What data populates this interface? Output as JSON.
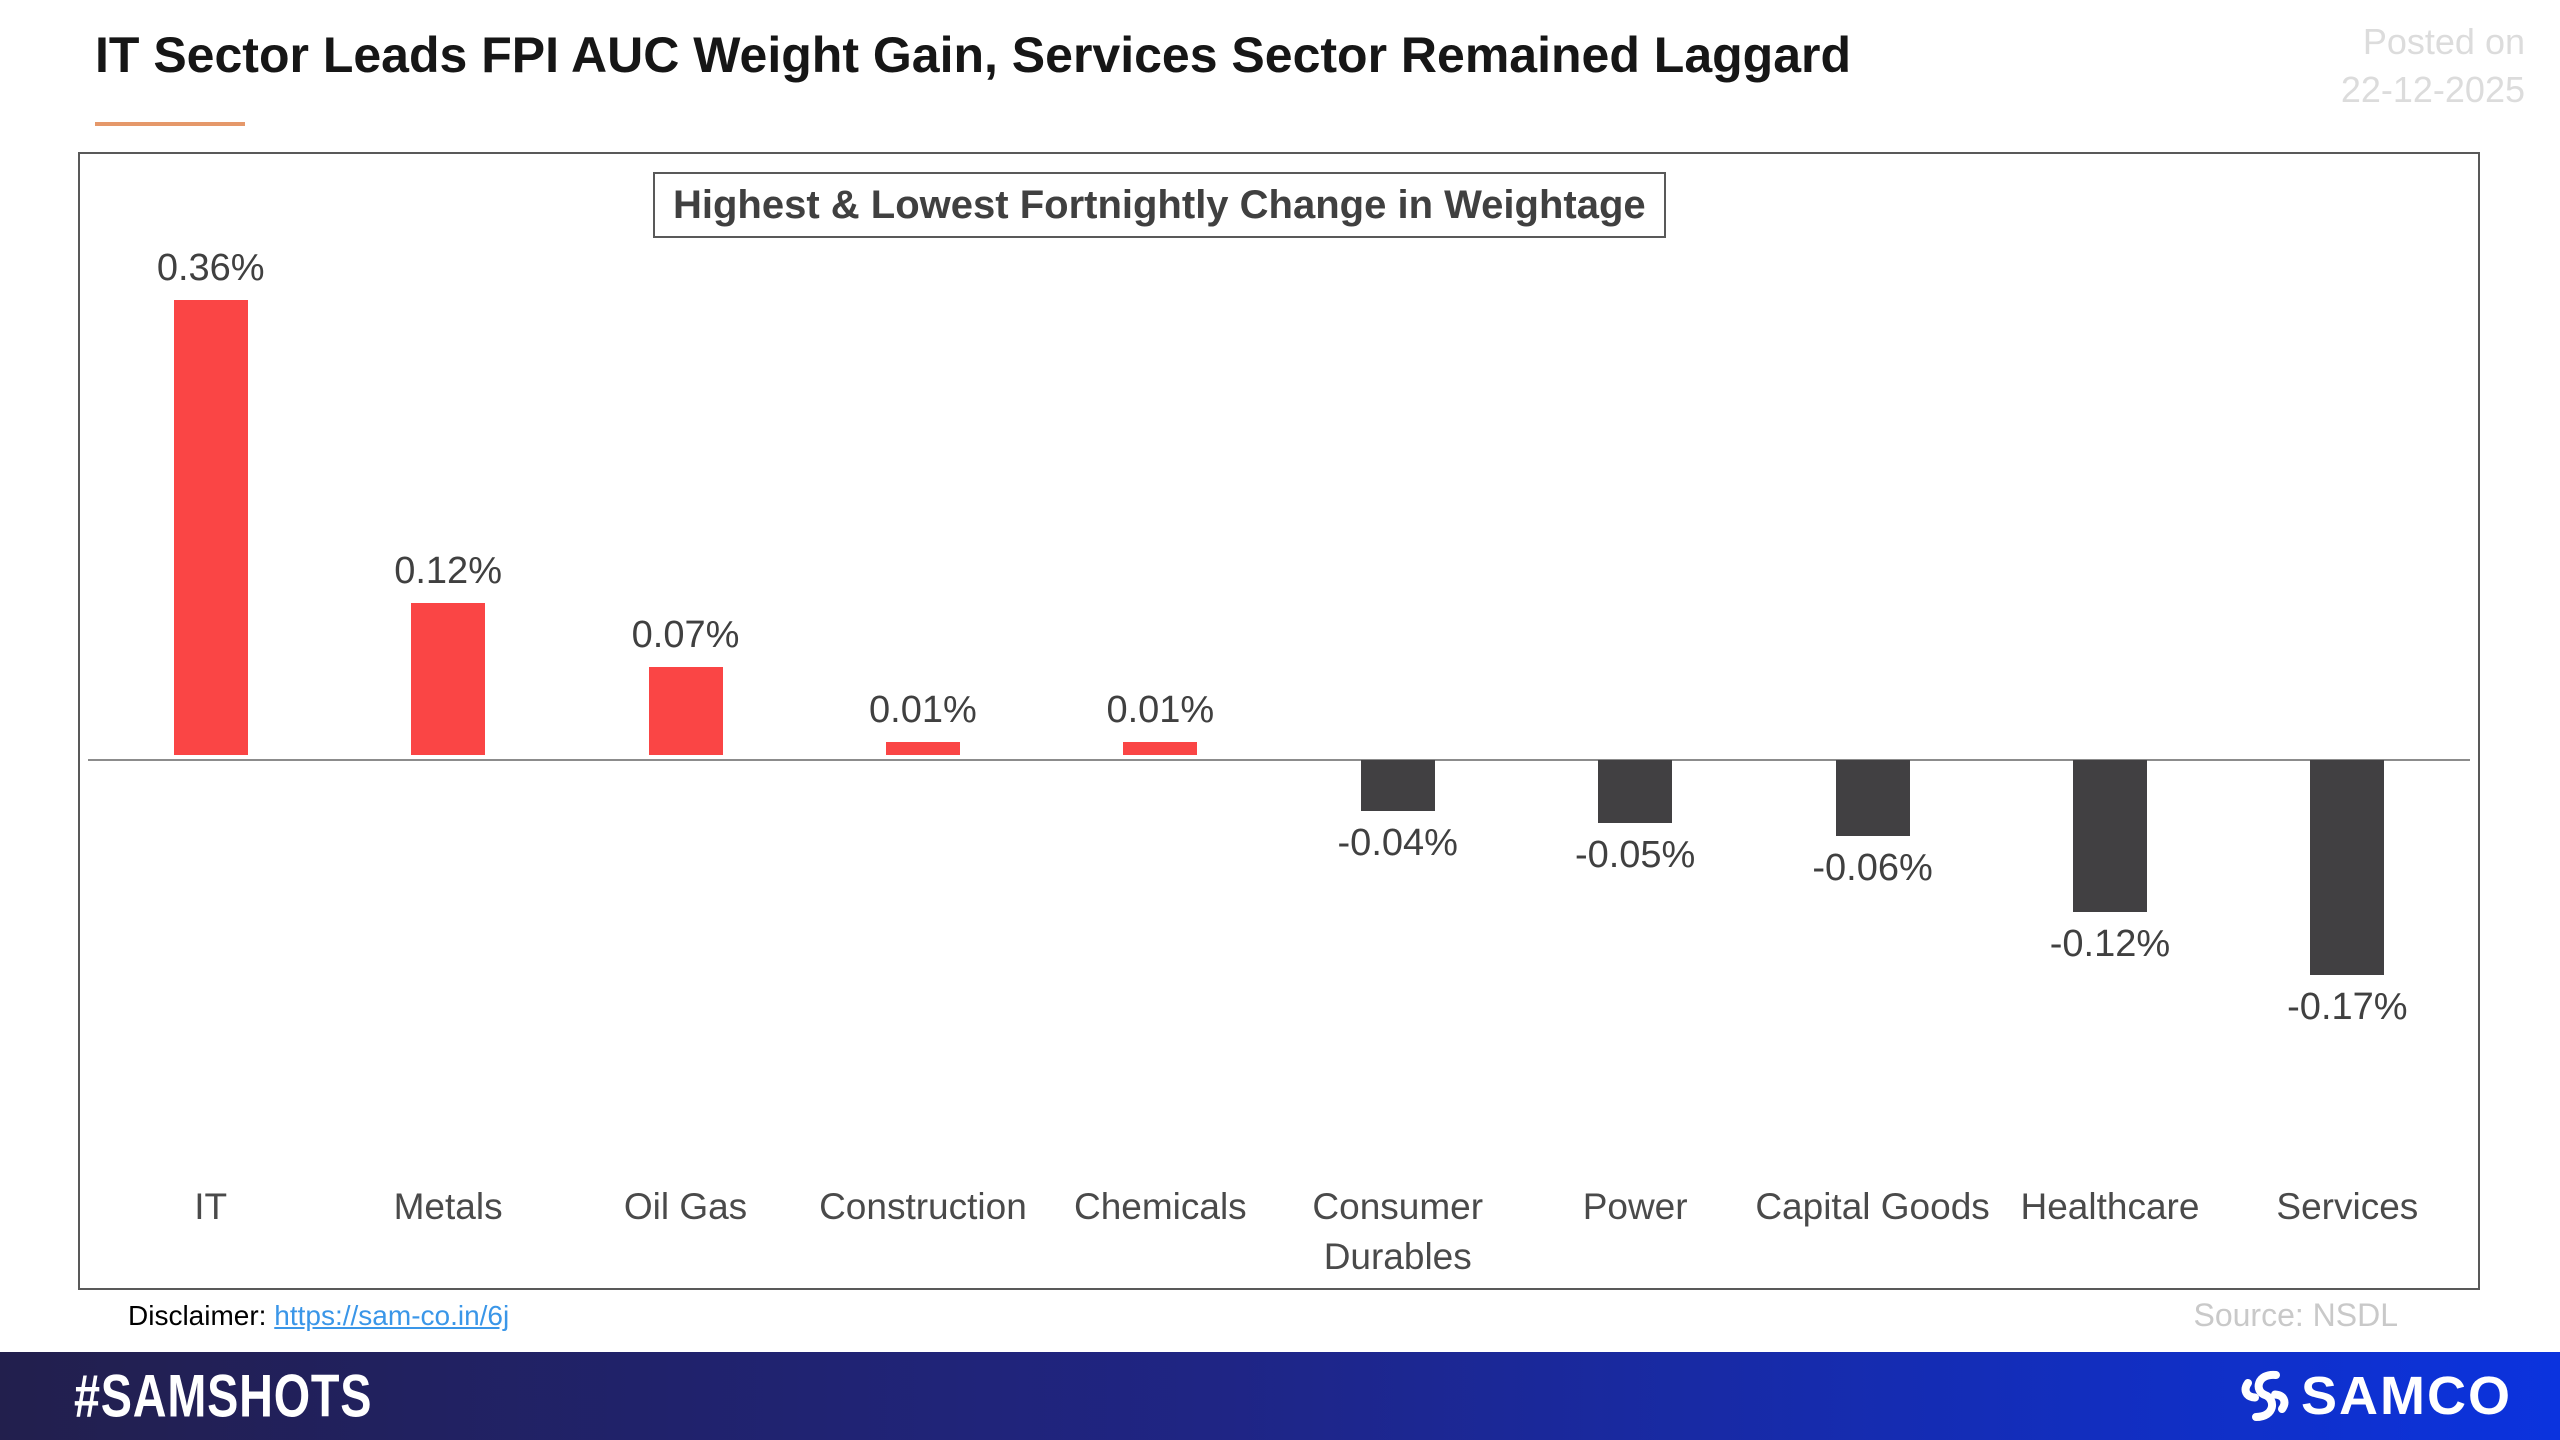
{
  "header": {
    "title": "IT Sector Leads FPI AUC Weight Gain, Services Sector Remained Laggard",
    "posted_label": "Posted on",
    "posted_date": "22-12-2025"
  },
  "chart_data": {
    "type": "bar",
    "title": "Highest & Lowest Fortnightly Change in Weightage",
    "categories": [
      "IT",
      "Metals",
      "Oil Gas",
      "Construction",
      "Chemicals",
      "Consumer Durables",
      "Power",
      "Capital Goods",
      "Healthcare",
      "Services"
    ],
    "values": [
      0.36,
      0.12,
      0.07,
      0.01,
      0.01,
      -0.04,
      -0.05,
      -0.06,
      -0.12,
      -0.17
    ],
    "value_labels": [
      "0.36%",
      "0.12%",
      "0.07%",
      "0.01%",
      "0.01%",
      "-0.04%",
      "-0.05%",
      "-0.06%",
      "-0.12%",
      "-0.17%"
    ],
    "unit": "%",
    "ylim": [
      -0.2,
      0.4
    ],
    "grid": false,
    "legend": "none",
    "positive_color": "#FA4545",
    "negative_color": "#414042",
    "baseline": 0
  },
  "source": "Source: NSDL",
  "disclaimer": {
    "label": "Disclaimer:",
    "link_text": "https://sam-co.in/6j"
  },
  "footer": {
    "hashtag": "#SAMSHOTS",
    "brand": "SAMCO"
  },
  "colors": {
    "accent_red": "#FA4545",
    "bar_dark": "#414042",
    "title_underline": "#E5986A",
    "link_blue": "#3A96E8",
    "footer_gradient_left": "#221F4D",
    "footer_gradient_right": "#0B33DE"
  }
}
